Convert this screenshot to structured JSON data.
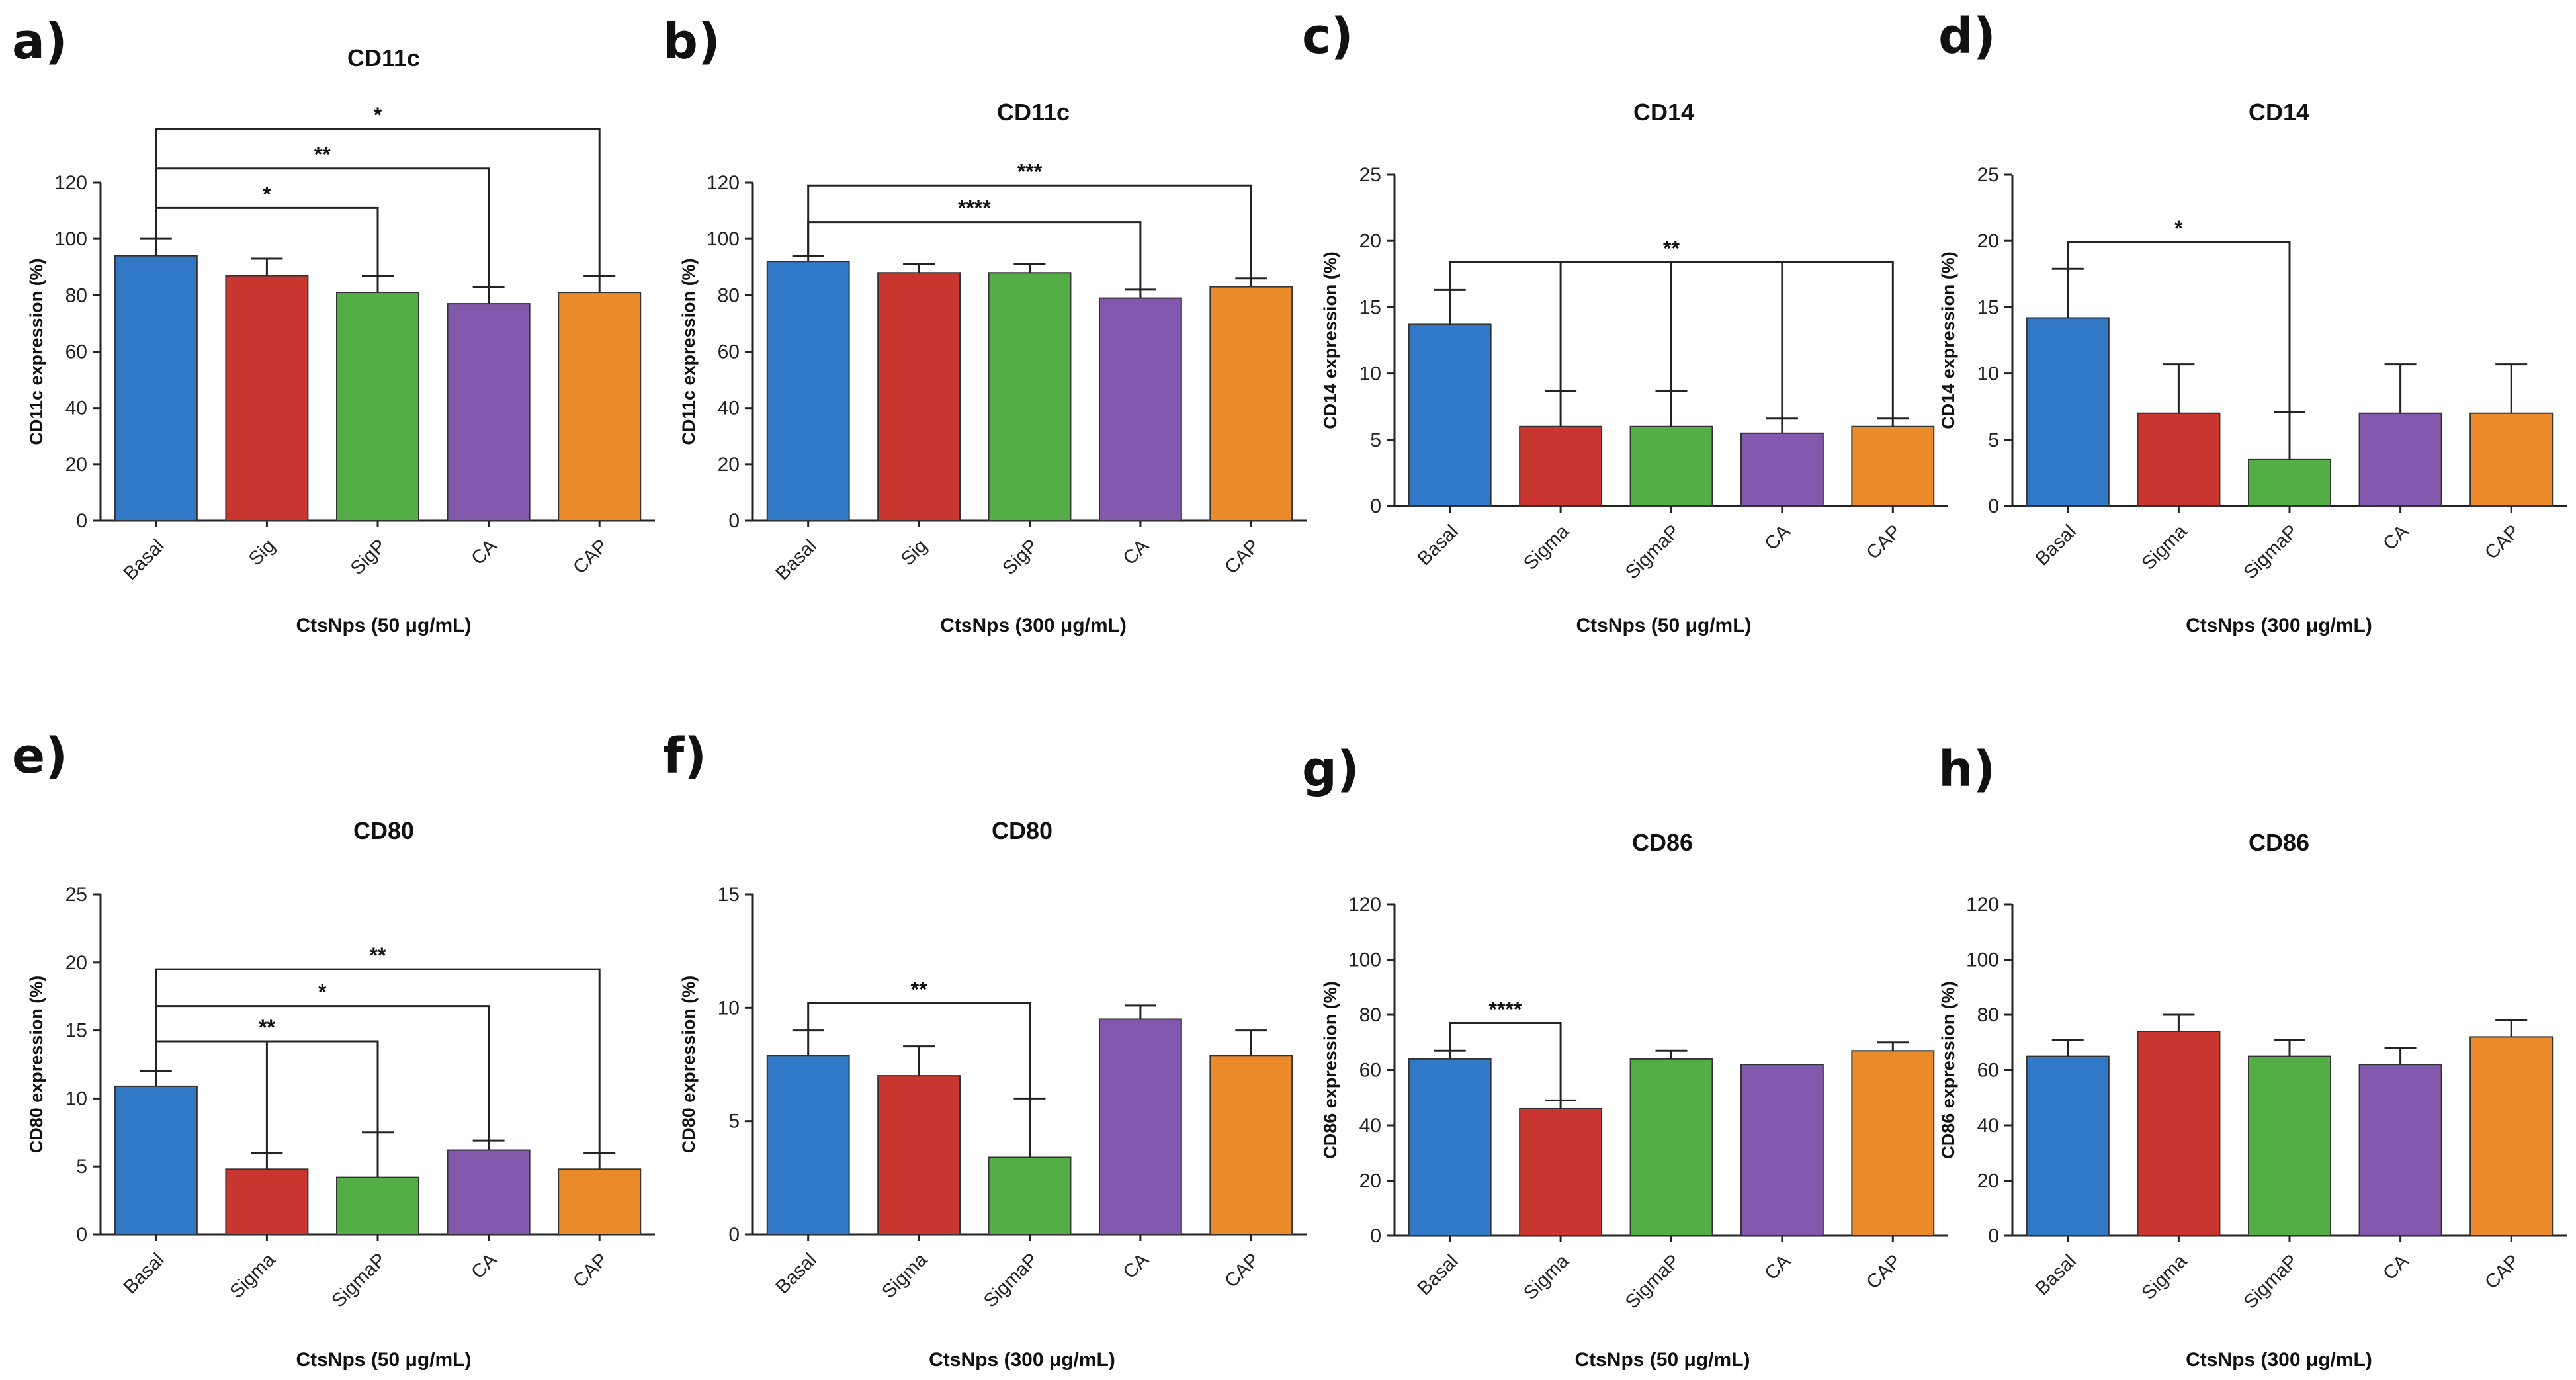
{
  "colors": {
    "Basal": "#3179c6",
    "Red": "#c9352f",
    "Green": "#52ae45",
    "Purple": "#8158ab",
    "Orange": "#ea8a28"
  },
  "chart_data": [
    {
      "id": "a",
      "letter": "a)",
      "type": "bar",
      "title": "CD11c",
      "ylabel": "CD11c expression (%)",
      "xlabel": "CtsNps (50 μg/mL)",
      "ylim": [
        0,
        120
      ],
      "yticks": [
        0,
        20,
        40,
        60,
        80,
        100,
        120
      ],
      "categories": [
        "Basal",
        "Sig",
        "SigP",
        "CA",
        "CAP"
      ],
      "values": [
        94,
        87,
        81,
        77,
        81
      ],
      "errors": [
        6,
        6,
        6,
        6,
        6
      ],
      "significance": [
        {
          "from": 0,
          "to": 2,
          "label": "*",
          "y": 111
        },
        {
          "from": 0,
          "to": 3,
          "label": "**",
          "y": 125
        },
        {
          "from": 0,
          "to": 4,
          "label": "*",
          "y": 139
        }
      ]
    },
    {
      "id": "b",
      "letter": "b)",
      "type": "bar",
      "title": "CD11c",
      "ylabel": "CD11c expression (%)",
      "xlabel": "CtsNps (300 μg/mL)",
      "ylim": [
        0,
        120
      ],
      "yticks": [
        0,
        20,
        40,
        60,
        80,
        100,
        120
      ],
      "categories": [
        "Basal",
        "Sig",
        "SigP",
        "CA",
        "CAP"
      ],
      "values": [
        92,
        88,
        88,
        79,
        83
      ],
      "errors": [
        2,
        3,
        3,
        3,
        3
      ],
      "significance": [
        {
          "from": 0,
          "to": 3,
          "label": "****",
          "y": 106
        },
        {
          "from": 0,
          "to": 4,
          "label": "***",
          "y": 119
        }
      ]
    },
    {
      "id": "c",
      "letter": "c)",
      "type": "bar",
      "title": "CD14",
      "ylabel": "CD14 expression (%)",
      "xlabel": "CtsNps (50 μg/mL)",
      "ylim": [
        0,
        25
      ],
      "yticks": [
        0,
        5,
        10,
        15,
        20,
        25
      ],
      "categories": [
        "Basal",
        "Sigma",
        "SigmaP",
        "CA",
        "CAP"
      ],
      "values": [
        13.7,
        6,
        6,
        5.5,
        6
      ],
      "errors": [
        2.6,
        2.7,
        2.7,
        1.1,
        0.6
      ],
      "significance": [
        {
          "from": 0,
          "to": 4,
          "label": "**",
          "y": 18.4,
          "drops": [
            1,
            2,
            3
          ]
        }
      ]
    },
    {
      "id": "d",
      "letter": "d)",
      "type": "bar",
      "title": "CD14",
      "ylabel": "CD14 expression (%)",
      "xlabel": "CtsNps (300 μg/mL)",
      "ylim": [
        0,
        25
      ],
      "yticks": [
        0,
        5,
        10,
        15,
        20,
        25
      ],
      "categories": [
        "Basal",
        "Sigma",
        "SigmaP",
        "CA",
        "CAP"
      ],
      "values": [
        14.2,
        7,
        3.5,
        7,
        7
      ],
      "errors": [
        3.7,
        3.7,
        3.6,
        3.7,
        3.7
      ],
      "significance": [
        {
          "from": 0,
          "to": 2,
          "label": "*",
          "y": 19.9
        }
      ]
    },
    {
      "id": "e",
      "letter": "e)",
      "type": "bar",
      "title": "CD80",
      "ylabel": "CD80 expression (%)",
      "xlabel": "CtsNps (50 μg/mL)",
      "ylim": [
        0,
        25
      ],
      "yticks": [
        0,
        5,
        10,
        15,
        20,
        25
      ],
      "categories": [
        "Basal",
        "Sigma",
        "SigmaP",
        "CA",
        "CAP"
      ],
      "values": [
        10.9,
        4.8,
        4.2,
        6.2,
        4.8
      ],
      "errors": [
        1.1,
        1.2,
        3.3,
        0.7,
        1.2
      ],
      "significance": [
        {
          "from": 0,
          "to": 2,
          "label": "**",
          "y": 14.2,
          "drops": [
            1
          ]
        },
        {
          "from": 0,
          "to": 3,
          "label": "*",
          "y": 16.8
        },
        {
          "from": 0,
          "to": 4,
          "label": "**",
          "y": 19.5
        }
      ]
    },
    {
      "id": "f",
      "letter": "f)",
      "type": "bar",
      "title": "CD80",
      "ylabel": "CD80 expression (%)",
      "xlabel": "CtsNps (300 μg/mL)",
      "ylim": [
        0,
        15
      ],
      "yticks": [
        0,
        5,
        10,
        15
      ],
      "categories": [
        "Basal",
        "Sigma",
        "SigmaP",
        "CA",
        "CAP"
      ],
      "values": [
        7.9,
        7,
        3.4,
        9.5,
        7.9
      ],
      "errors": [
        1.1,
        1.3,
        2.6,
        0.6,
        1.1
      ],
      "significance": [
        {
          "from": 0,
          "to": 2,
          "label": "**",
          "y": 10.2
        }
      ]
    },
    {
      "id": "g",
      "letter": "g)",
      "type": "bar",
      "title": "CD86",
      "ylabel": "CD86 expression (%)",
      "xlabel": "CtsNps (50 μg/mL)",
      "ylim": [
        0,
        120
      ],
      "yticks": [
        0,
        20,
        40,
        60,
        80,
        100,
        120
      ],
      "categories": [
        "Basal",
        "Sigma",
        "SigmaP",
        "CA",
        "CAP"
      ],
      "values": [
        64,
        46,
        64,
        62,
        67
      ],
      "errors": [
        3,
        3,
        3,
        0,
        3
      ],
      "significance": [
        {
          "from": 0,
          "to": 1,
          "label": "****",
          "y": 77
        }
      ]
    },
    {
      "id": "h",
      "letter": "h)",
      "type": "bar",
      "title": "CD86",
      "ylabel": "CD86 expression (%)",
      "xlabel": "CtsNps (300 μg/mL)",
      "ylim": [
        0,
        120
      ],
      "yticks": [
        0,
        20,
        40,
        60,
        80,
        100,
        120
      ],
      "categories": [
        "Basal",
        "Sigma",
        "SigmaP",
        "CA",
        "CAP"
      ],
      "values": [
        65,
        74,
        65,
        62,
        72
      ],
      "errors": [
        6,
        6,
        6,
        6,
        6
      ],
      "significance": []
    }
  ]
}
